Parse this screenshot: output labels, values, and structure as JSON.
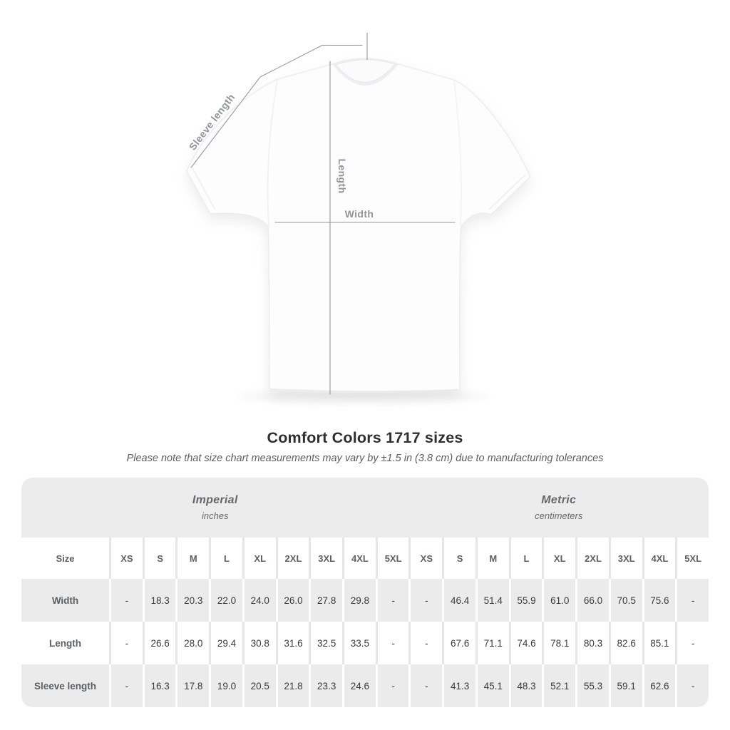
{
  "diagram": {
    "labels": {
      "sleeve_length": "Sleeve length",
      "length": "Length",
      "width": "Width"
    },
    "line_color": "#94999c",
    "label_color": "#8f9598"
  },
  "title": "Comfort Colors 1717 sizes",
  "subtitle": "Please note that size chart measurements may vary by ±1.5 in (3.8 cm) due to manufacturing tolerances",
  "table": {
    "size_label": "Size",
    "unit_groups": [
      {
        "name": "Imperial",
        "unit": "inches"
      },
      {
        "name": "Metric",
        "unit": "centimeters"
      }
    ],
    "sizes": [
      "XS",
      "S",
      "M",
      "L",
      "XL",
      "2XL",
      "3XL",
      "4XL",
      "5XL"
    ],
    "rows": [
      {
        "label": "Width",
        "imperial": [
          "-",
          "18.3",
          "20.3",
          "22.0",
          "24.0",
          "26.0",
          "27.8",
          "29.8",
          "-"
        ],
        "metric": [
          "-",
          "46.4",
          "51.4",
          "55.9",
          "61.0",
          "66.0",
          "70.5",
          "75.6",
          "-"
        ]
      },
      {
        "label": "Length",
        "imperial": [
          "-",
          "26.6",
          "28.0",
          "29.4",
          "30.8",
          "31.6",
          "32.5",
          "33.5",
          "-"
        ],
        "metric": [
          "-",
          "67.6",
          "71.1",
          "74.6",
          "78.1",
          "80.3",
          "82.6",
          "85.1",
          "-"
        ]
      },
      {
        "label": "Sleeve length",
        "imperial": [
          "-",
          "16.3",
          "17.8",
          "19.0",
          "20.5",
          "21.8",
          "23.3",
          "24.6",
          "-"
        ],
        "metric": [
          "-",
          "41.3",
          "45.1",
          "48.3",
          "52.1",
          "55.3",
          "59.1",
          "62.6",
          "-"
        ]
      }
    ],
    "colors": {
      "header_band": "#ececec",
      "row_alt": "#ebebeb",
      "separator_on_white": "#e6e6e6",
      "separator_on_gray": "#ffffff",
      "header_text": "#5b6064",
      "value_text": "#3a3a3a"
    }
  }
}
